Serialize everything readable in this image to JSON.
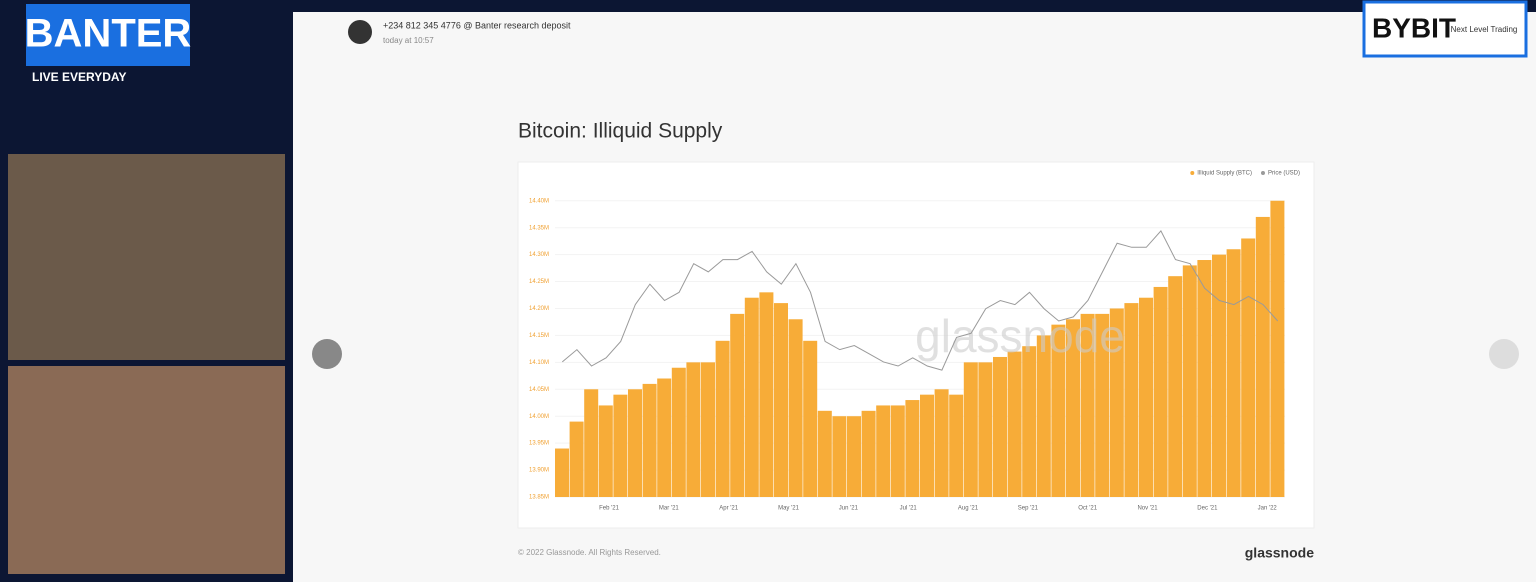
{
  "overlay": {
    "brand": "BANTER",
    "tagline": "LIVE EVERYDAY",
    "sponsor": "BYBIT",
    "sponsor_tagline": "Next Level Trading"
  },
  "post": {
    "author": "+234 812 345 4776 @ Banter research deposit",
    "time": "today at 10:57"
  },
  "chart": {
    "type": "bar",
    "title": "Bitcoin: Illiquid Supply",
    "watermark": "glassnode",
    "xlabels": [
      "Feb '21",
      "Mar '21",
      "Apr '21",
      "May '21",
      "Jun '21",
      "Jul '21",
      "Aug '21",
      "Sep '21",
      "Oct '21",
      "Nov '21",
      "Dec '21",
      "Jan '22"
    ],
    "series": [
      {
        "name": "Illiquid Supply (BTC)",
        "color": "#f7ac38",
        "values": [
          13.94,
          13.99,
          14.05,
          14.02,
          14.04,
          14.05,
          14.06,
          14.07,
          14.09,
          14.1,
          14.1,
          14.14,
          14.19,
          14.22,
          14.23,
          14.21,
          14.18,
          14.14,
          14.01,
          14.0,
          14.0,
          14.01,
          14.02,
          14.02,
          14.03,
          14.04,
          14.05,
          14.04,
          14.1,
          14.1,
          14.11,
          14.12,
          14.13,
          14.15,
          14.17,
          14.18,
          14.19,
          14.19,
          14.2,
          14.21,
          14.22,
          14.24,
          14.26,
          14.28,
          14.29,
          14.3,
          14.31,
          14.33,
          14.37,
          14.4
        ]
      },
      {
        "name": "Price (USD)",
        "color": "#9a9a9a",
        "axis": "y2",
        "values": [
          33000,
          36000,
          32000,
          34000,
          38000,
          47000,
          52000,
          48000,
          50000,
          57000,
          55000,
          58000,
          58000,
          60000,
          55000,
          52000,
          57000,
          50000,
          38000,
          36000,
          37000,
          35000,
          33000,
          32000,
          34000,
          32000,
          31000,
          39000,
          40000,
          46000,
          48000,
          47000,
          50000,
          46000,
          43000,
          44000,
          48000,
          55000,
          62000,
          61000,
          61000,
          65000,
          58000,
          57000,
          51000,
          48000,
          47000,
          49000,
          47000,
          43000
        ]
      }
    ],
    "ylim": [
      13.85,
      14.42
    ],
    "y2lim": [
      0,
      75000
    ],
    "yticks": [
      {
        "value": 13.85,
        "label": "13.85M"
      },
      {
        "value": 13.9,
        "label": "13.90M"
      },
      {
        "value": 13.95,
        "label": "13.95M"
      },
      {
        "value": 14.0,
        "label": "14.00M"
      },
      {
        "value": 14.05,
        "label": "14.05M"
      },
      {
        "value": 14.1,
        "label": "14.10M"
      },
      {
        "value": 14.15,
        "label": "14.15M"
      },
      {
        "value": 14.2,
        "label": "14.20M"
      },
      {
        "value": 14.25,
        "label": "14.25M"
      },
      {
        "value": 14.3,
        "label": "14.30M"
      },
      {
        "value": 14.35,
        "label": "14.35M"
      },
      {
        "value": 14.4,
        "label": "14.40M"
      }
    ]
  },
  "footer": {
    "copyright": "© 2022 Glassnode. All Rights Reserved.",
    "logo": "glassnode"
  }
}
